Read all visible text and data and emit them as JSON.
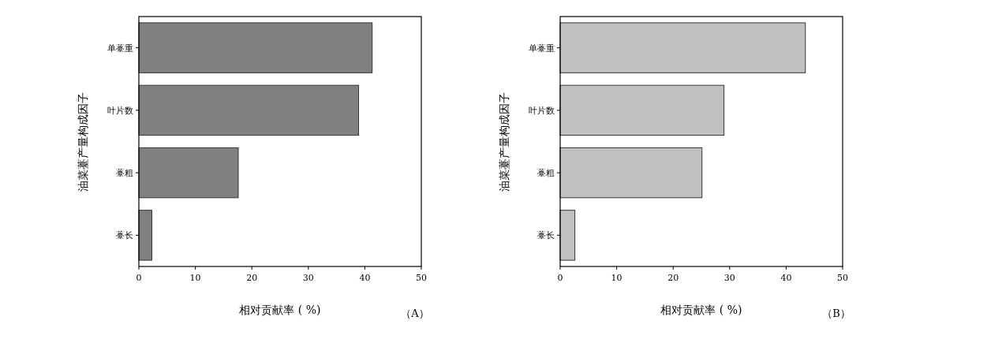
{
  "chart_data": [
    {
      "type": "bar",
      "orientation": "horizontal",
      "categories": [
        "单薹重",
        "叶片数",
        "薹粗",
        "薹长"
      ],
      "values": [
        41.3,
        38.9,
        17.6,
        2.3
      ],
      "color": "#808080",
      "xlim": [
        0,
        50
      ],
      "xticks": [
        0,
        10,
        20,
        30,
        40,
        50
      ],
      "xlabel": "相对贡献率 ( %)",
      "ylabel": "油菜薹产量构成因子",
      "annotations": [
        "（A）"
      ]
    },
    {
      "type": "bar",
      "orientation": "horizontal",
      "categories": [
        "单薹重",
        "叶片数",
        "薹粗",
        "薹长"
      ],
      "values": [
        43.4,
        29.0,
        25.1,
        2.6
      ],
      "color": "#c0c0c0",
      "xlim": [
        0,
        50
      ],
      "xticks": [
        0,
        10,
        20,
        30,
        40,
        50
      ],
      "xlabel": "相对贡献率 ( %)",
      "ylabel": "油菜薹产量构成因子",
      "annotations": [
        "（B）"
      ]
    }
  ]
}
